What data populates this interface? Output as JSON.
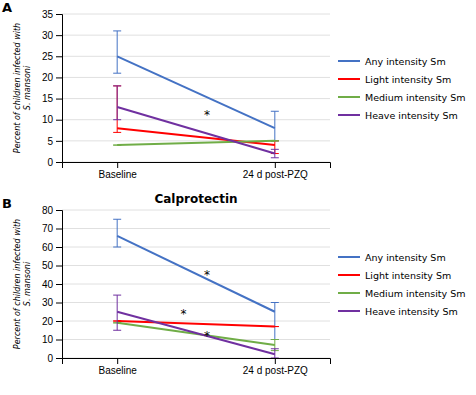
{
  "chart_data": [
    {
      "type": "line",
      "panel_label": "A",
      "ylabel": "Percent of children infected with\nS. mansoni",
      "categories": [
        "Baseline",
        "24 d post-PZQ"
      ],
      "ylim": [
        0,
        35
      ],
      "yticks": [
        0,
        5,
        10,
        15,
        20,
        25,
        30,
        35
      ],
      "grid": true,
      "legend": "right",
      "series": [
        {
          "name": "Any intensity Sm",
          "color": "#4472C4",
          "values": [
            25,
            8
          ],
          "yerr_lo": [
            4,
            3
          ],
          "yerr_hi": [
            6,
            4
          ]
        },
        {
          "name": "Light intensity Sm",
          "color": "#FF0000",
          "values": [
            8,
            4
          ],
          "yerr_lo": [
            1,
            2
          ],
          "yerr_hi": [
            10,
            1
          ]
        },
        {
          "name": "Medium intensity Sm",
          "color": "#70AD47",
          "values": [
            4,
            5
          ],
          "yerr_lo": [
            0,
            0
          ],
          "yerr_hi": [
            0,
            0
          ]
        },
        {
          "name": "Heave intensity Sm",
          "color": "#7030A0",
          "values": [
            13,
            2
          ],
          "yerr_lo": [
            3,
            1
          ],
          "yerr_hi": [
            5,
            1
          ]
        }
      ],
      "annotations": [
        {
          "x": 0.57,
          "y": 11,
          "text": "*"
        }
      ]
    },
    {
      "type": "line",
      "panel_label": "B",
      "title": "Calprotectin",
      "ylabel": "Percent of children infected with\nS. mansoni",
      "categories": [
        "Baseline",
        "24 d post-PZQ"
      ],
      "ylim": [
        0,
        80
      ],
      "yticks": [
        0,
        10,
        20,
        30,
        40,
        50,
        60,
        70,
        80
      ],
      "grid": true,
      "legend": "right",
      "series": [
        {
          "name": "Any intensity Sm",
          "color": "#4472C4",
          "values": [
            66,
            25
          ],
          "yerr_lo": [
            6,
            15
          ],
          "yerr_hi": [
            9,
            5
          ]
        },
        {
          "name": "Light intensity Sm",
          "color": "#FF0000",
          "values": [
            20,
            17
          ],
          "yerr_lo": [
            0,
            0
          ],
          "yerr_hi": [
            0,
            0
          ]
        },
        {
          "name": "Medium intensity Sm",
          "color": "#70AD47",
          "values": [
            19,
            7
          ],
          "yerr_lo": [
            0,
            3
          ],
          "yerr_hi": [
            0,
            3
          ]
        },
        {
          "name": "Heave intensity Sm",
          "color": "#7030A0",
          "values": [
            25,
            2
          ],
          "yerr_lo": [
            10,
            2
          ],
          "yerr_hi": [
            9,
            3
          ]
        }
      ],
      "annotations": [
        {
          "x": 0.57,
          "y": 45,
          "text": "*"
        },
        {
          "x": 0.42,
          "y": 24,
          "text": "*"
        },
        {
          "x": 0.57,
          "y": 12,
          "text": "*"
        }
      ]
    }
  ]
}
